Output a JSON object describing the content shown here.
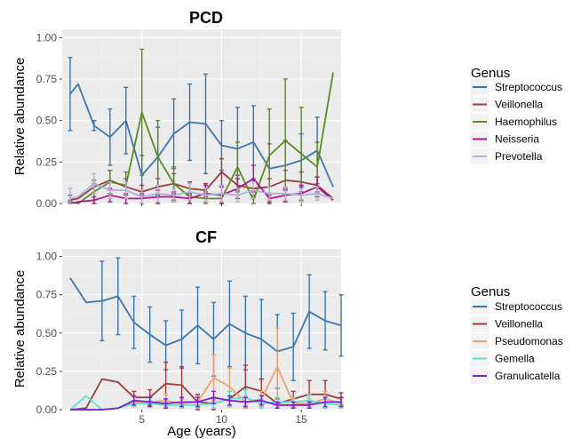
{
  "chart_data": [
    {
      "type": "line",
      "title": "PCD",
      "xlabel": "",
      "ylabel": "Relative abundance",
      "xlim": [
        0,
        17.5
      ],
      "ylim": [
        0,
        1.05
      ],
      "xticks": [
        5,
        10,
        15
      ],
      "xtick_labels": [
        "",
        "",
        ""
      ],
      "yticks": [
        0,
        0.25,
        0.5,
        0.75,
        1.0
      ],
      "ytick_labels": [
        "0.00",
        "0.25",
        "0.50",
        "0.75",
        "1.00"
      ],
      "grid": true,
      "legend_title": "Genus",
      "legend_position": "right",
      "series": [
        {
          "name": "Streptococcus",
          "color": "#3b75af",
          "x": [
            0.5,
            1,
            2,
            3,
            4,
            5,
            6,
            7,
            8,
            9,
            10,
            11,
            12,
            13,
            14,
            15,
            16,
            17
          ],
          "y": [
            0.66,
            0.72,
            0.47,
            0.4,
            0.5,
            0.17,
            0.28,
            0.42,
            0.49,
            0.48,
            0.35,
            0.33,
            0.37,
            0.21,
            0.23,
            0.26,
            0.32,
            0.1
          ],
          "err": [
            0.22,
            0,
            0.03,
            0.17,
            0.2,
            0.12,
            0.18,
            0.21,
            0.23,
            0.3,
            0.15,
            0.25,
            0.22,
            0.15,
            0.15,
            0.16,
            0.2,
            0
          ]
        },
        {
          "name": "Veillonella",
          "color": "#9b3d3f",
          "x": [
            0.5,
            1,
            2,
            3,
            4,
            5,
            6,
            7,
            8,
            9,
            10,
            11,
            12,
            13,
            14,
            15,
            16,
            17
          ],
          "y": [
            0.02,
            0.03,
            0.1,
            0.14,
            0.1,
            0.07,
            0.1,
            0.12,
            0.09,
            0.08,
            0.19,
            0.11,
            0.09,
            0.1,
            0.14,
            0.13,
            0.11,
            0.03
          ],
          "err": [
            0.03,
            0,
            0.04,
            0.06,
            0.05,
            0.04,
            0.05,
            0.06,
            0.04,
            0.04,
            0.08,
            0.06,
            0.05,
            0.05,
            0.06,
            0.06,
            0.05,
            0
          ]
        },
        {
          "name": "Haemophilus",
          "color": "#5d8a1f",
          "x": [
            0.5,
            1,
            2,
            3,
            4,
            5,
            6,
            7,
            8,
            9,
            10,
            11,
            12,
            13,
            14,
            15,
            16,
            17
          ],
          "y": [
            0.01,
            0.0,
            0.07,
            0.13,
            0.11,
            0.55,
            0.28,
            0.12,
            0.04,
            0.03,
            0.03,
            0.22,
            0.02,
            0.29,
            0.38,
            0.3,
            0.22,
            0.79
          ],
          "err": [
            0.01,
            0,
            0.05,
            0.07,
            0.08,
            0.38,
            0.22,
            0.1,
            0.05,
            0.04,
            0.03,
            0.15,
            0.03,
            0.28,
            0.37,
            0.28,
            0.15,
            0
          ]
        },
        {
          "name": "Neisseria",
          "color": "#b3158f",
          "x": [
            0.5,
            1,
            2,
            3,
            4,
            5,
            6,
            7,
            8,
            9,
            10,
            11,
            12,
            13,
            14,
            15,
            16,
            17
          ],
          "y": [
            0.0,
            0.01,
            0.02,
            0.05,
            0.03,
            0.03,
            0.04,
            0.04,
            0.03,
            0.06,
            0.05,
            0.09,
            0.15,
            0.03,
            0.05,
            0.06,
            0.1,
            0.02
          ],
          "err": [
            0.01,
            0,
            0.02,
            0.04,
            0.03,
            0.03,
            0.04,
            0.03,
            0.03,
            0.05,
            0.05,
            0.06,
            0.08,
            0.03,
            0.04,
            0.05,
            0.06,
            0
          ]
        },
        {
          "name": "Prevotella",
          "color": "#b0b0dc",
          "x": [
            0.5,
            1,
            2,
            3,
            4,
            5,
            6,
            7,
            8,
            9,
            10,
            11,
            12,
            13,
            14,
            15,
            16,
            17
          ],
          "y": [
            0.03,
            0.04,
            0.12,
            0.08,
            0.08,
            0.04,
            0.06,
            0.05,
            0.07,
            0.05,
            0.06,
            0.05,
            0.08,
            0.06,
            0.06,
            0.05,
            0.06,
            0.03
          ],
          "err": [
            0.06,
            0,
            0.06,
            0.05,
            0.05,
            0.04,
            0.05,
            0.04,
            0.05,
            0.04,
            0.05,
            0.04,
            0.05,
            0.04,
            0.04,
            0.04,
            0.04,
            0
          ]
        }
      ]
    },
    {
      "type": "line",
      "title": "CF",
      "xlabel": "Age (years)",
      "ylabel": "Relative abundance",
      "xlim": [
        0,
        17.5
      ],
      "ylim": [
        0,
        1.05
      ],
      "xticks": [
        5,
        10,
        15
      ],
      "xtick_labels": [
        "5",
        "10",
        "15"
      ],
      "yticks": [
        0,
        0.25,
        0.5,
        0.75,
        1.0
      ],
      "ytick_labels": [
        "0.00",
        "0.25",
        "0.50",
        "0.75",
        "1.00"
      ],
      "grid": true,
      "legend_title": "Genus",
      "legend_position": "right",
      "series": [
        {
          "name": "Streptococcus",
          "color": "#3b75af",
          "x": [
            0.5,
            1.5,
            2.5,
            3.5,
            4.5,
            5.5,
            6.5,
            7.5,
            8.5,
            9.5,
            10.5,
            11.5,
            12.5,
            13.5,
            14.5,
            15.5,
            16.5,
            17.5
          ],
          "y": [
            0.86,
            0.7,
            0.71,
            0.74,
            0.57,
            0.49,
            0.42,
            0.46,
            0.55,
            0.46,
            0.56,
            0.5,
            0.46,
            0.38,
            0.41,
            0.64,
            0.58,
            0.55
          ],
          "err": [
            0,
            0,
            0.26,
            0.25,
            0.17,
            0.18,
            0.16,
            0.19,
            0.25,
            0.24,
            0.28,
            0.24,
            0.26,
            0.24,
            0.22,
            0.24,
            0.19,
            0.2
          ]
        },
        {
          "name": "Veillonella",
          "color": "#9b3d3f",
          "x": [
            0.5,
            1.5,
            2.5,
            3.5,
            4.5,
            5.5,
            6.5,
            7.5,
            8.5,
            9.5,
            10.5,
            11.5,
            12.5,
            13.5,
            14.5,
            15.5,
            16.5,
            17.5
          ],
          "y": [
            0.0,
            0.01,
            0.2,
            0.18,
            0.08,
            0.08,
            0.17,
            0.16,
            0.05,
            0.04,
            0.07,
            0.15,
            0.12,
            0.04,
            0.07,
            0.1,
            0.1,
            0.07
          ],
          "err": [
            0,
            0,
            0,
            0,
            0.04,
            0.05,
            0.14,
            0.12,
            0.05,
            0.04,
            0.05,
            0.14,
            0.08,
            0.03,
            0.05,
            0.09,
            0.09,
            0.04
          ]
        },
        {
          "name": "Pseudomonas",
          "color": "#f0a070",
          "x": [
            0.5,
            1.5,
            2.5,
            3.5,
            4.5,
            5.5,
            6.5,
            7.5,
            8.5,
            9.5,
            10.5,
            11.5,
            12.5,
            13.5,
            14.5,
            15.5,
            16.5,
            17.5
          ],
          "y": [
            0.0,
            0.0,
            0.0,
            0.01,
            0.05,
            0.05,
            0.06,
            0.04,
            0.05,
            0.21,
            0.15,
            0.05,
            0.07,
            0.28,
            0.04,
            0.04,
            0.07,
            0.04
          ],
          "err": [
            0,
            0,
            0,
            0,
            0.03,
            0.03,
            0.04,
            0.03,
            0.04,
            0.15,
            0.12,
            0.04,
            0.05,
            0.25,
            0.03,
            0.03,
            0.05,
            0.03
          ]
        },
        {
          "name": "Gemella",
          "color": "#56e3c6",
          "x": [
            0.5,
            1.5,
            2.5,
            3.5,
            4.5,
            5.5,
            6.5,
            7.5,
            8.5,
            9.5,
            10.5,
            11.5,
            12.5,
            13.5,
            14.5,
            15.5,
            16.5,
            17.5
          ],
          "y": [
            0.0,
            0.09,
            0.0,
            0.01,
            0.04,
            0.04,
            0.03,
            0.03,
            0.03,
            0.04,
            0.07,
            0.08,
            0.04,
            0.05,
            0.05,
            0.06,
            0.04,
            0.03
          ],
          "err": [
            0,
            0,
            0,
            0,
            0.02,
            0.02,
            0.02,
            0.02,
            0.02,
            0.03,
            0.05,
            0.05,
            0.03,
            0.03,
            0.03,
            0.04,
            0.03,
            0.02
          ]
        },
        {
          "name": "Granulicatella",
          "color": "#7d1fd1",
          "x": [
            0.5,
            1.5,
            2.5,
            3.5,
            4.5,
            5.5,
            6.5,
            7.5,
            8.5,
            9.5,
            10.5,
            11.5,
            12.5,
            13.5,
            14.5,
            15.5,
            16.5,
            17.5
          ],
          "y": [
            0.0,
            0.0,
            0.0,
            0.01,
            0.06,
            0.05,
            0.04,
            0.05,
            0.05,
            0.08,
            0.06,
            0.05,
            0.06,
            0.03,
            0.03,
            0.03,
            0.05,
            0.05
          ],
          "err": [
            0,
            0,
            0,
            0,
            0.03,
            0.03,
            0.03,
            0.03,
            0.03,
            0.04,
            0.03,
            0.03,
            0.03,
            0.02,
            0.02,
            0.02,
            0.03,
            0.03
          ]
        }
      ]
    }
  ]
}
